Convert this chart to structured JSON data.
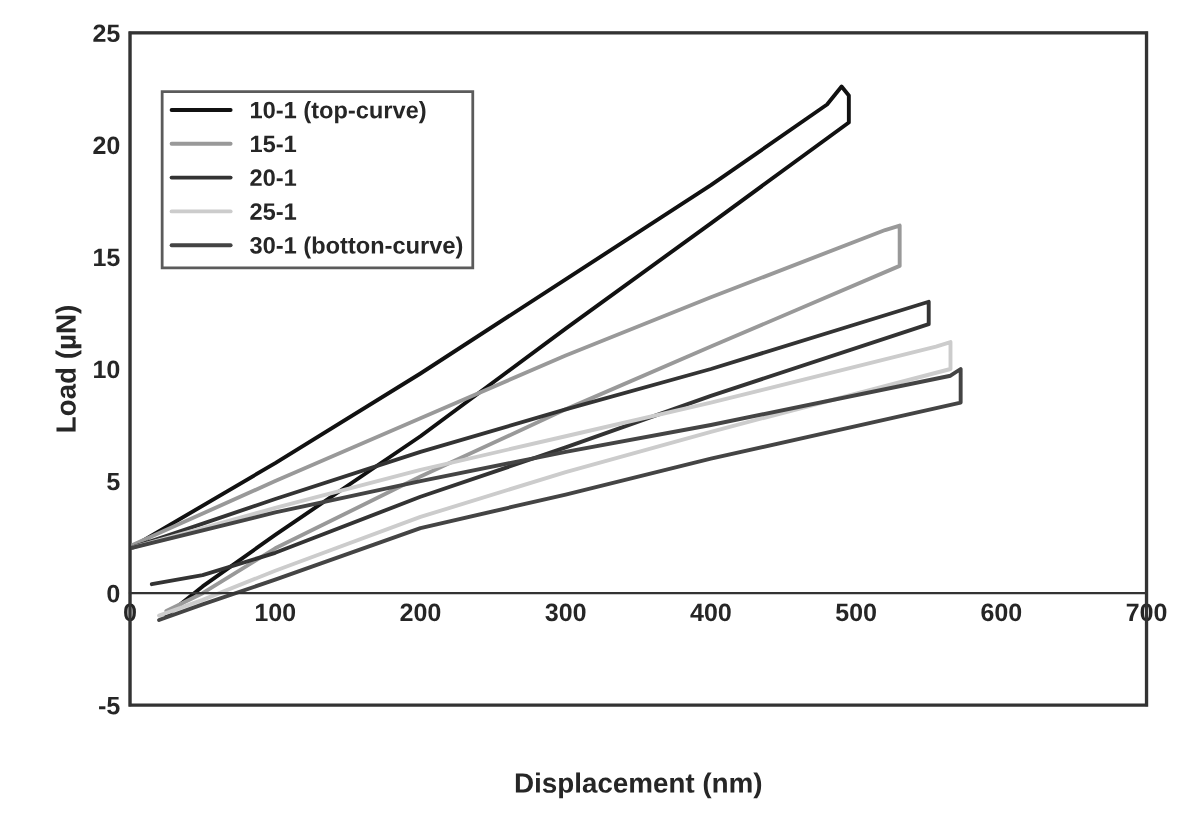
{
  "chart_data": {
    "type": "line",
    "xlabel": "Displacement (nm)",
    "ylabel": "Load (µN)",
    "xlim": [
      0,
      700
    ],
    "ylim": [
      -5,
      25
    ],
    "xticks": [
      0,
      100,
      200,
      300,
      400,
      500,
      600,
      700
    ],
    "yticks": [
      -5,
      0,
      5,
      10,
      15,
      20,
      25
    ],
    "grid": false,
    "legend": "top left",
    "line_style": "solid",
    "series": [
      {
        "name": "10-1 (top-curve)",
        "color": "#111111",
        "x": [
          0,
          100,
          200,
          300,
          400,
          480,
          490,
          495,
          495,
          400,
          300,
          200,
          100,
          50,
          25
        ],
        "values": [
          2.0,
          5.8,
          9.8,
          14.0,
          18.2,
          21.8,
          22.6,
          22.2,
          21.0,
          16.5,
          11.8,
          7.0,
          2.6,
          0.3,
          -1.0
        ]
      },
      {
        "name": "15-1",
        "color": "#999999",
        "x": [
          0,
          100,
          200,
          300,
          400,
          520,
          530,
          530,
          400,
          300,
          200,
          100,
          50,
          25
        ],
        "values": [
          2.1,
          5.0,
          7.8,
          10.6,
          13.2,
          16.2,
          16.4,
          14.6,
          11.0,
          8.2,
          5.2,
          2.0,
          0.0,
          -0.8
        ]
      },
      {
        "name": "20-1",
        "color": "#333333",
        "x": [
          0,
          100,
          200,
          300,
          400,
          540,
          550,
          550,
          400,
          300,
          200,
          100,
          50,
          15
        ],
        "values": [
          2.0,
          4.2,
          6.3,
          8.2,
          10.0,
          12.8,
          13.0,
          12.0,
          8.8,
          6.5,
          4.3,
          1.8,
          0.8,
          0.4
        ]
      },
      {
        "name": "25-1",
        "color": "#cccccc",
        "x": [
          0,
          100,
          200,
          300,
          400,
          555,
          565,
          565,
          400,
          300,
          200,
          100,
          50,
          20
        ],
        "values": [
          2.0,
          3.8,
          5.5,
          7.0,
          8.5,
          11.0,
          11.2,
          10.0,
          7.2,
          5.4,
          3.4,
          1.0,
          -0.3,
          -1.0
        ]
      },
      {
        "name": "30-1 (botton-curve)",
        "color": "#444444",
        "x": [
          0,
          100,
          200,
          300,
          400,
          565,
          572,
          572,
          400,
          300,
          200,
          100,
          50,
          20
        ],
        "values": [
          2.0,
          3.6,
          5.0,
          6.3,
          7.5,
          9.7,
          10.0,
          8.5,
          6.0,
          4.4,
          2.9,
          0.6,
          -0.5,
          -1.2
        ]
      }
    ]
  }
}
